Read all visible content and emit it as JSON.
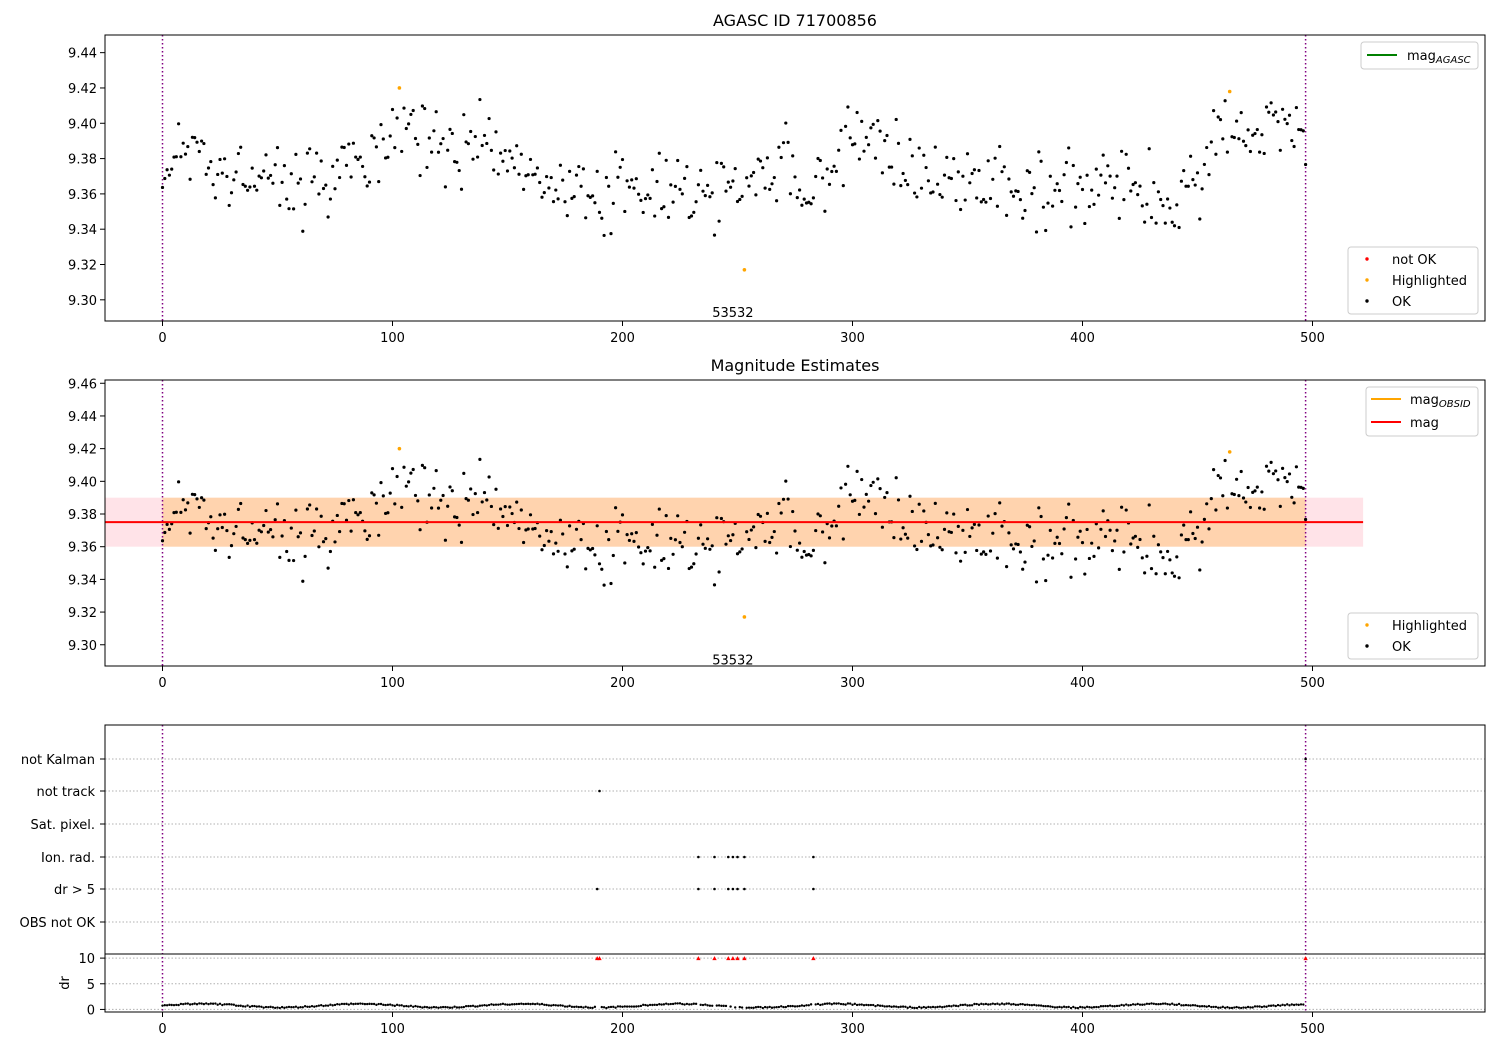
{
  "chart_data": [
    {
      "type": "scatter",
      "title": "AGASC ID 71700856",
      "xlim": [
        -25,
        575
      ],
      "ylim": [
        9.288,
        9.45
      ],
      "xticks": [
        0,
        100,
        200,
        300,
        400,
        500
      ],
      "yticks": [
        9.3,
        9.32,
        9.34,
        9.36,
        9.38,
        9.4,
        9.42,
        9.44
      ],
      "xtick_labels": [
        "0",
        "100",
        "200",
        "300",
        "400",
        "500"
      ],
      "ytick_labels": [
        "9.30",
        "9.32",
        "9.34",
        "9.36",
        "9.38",
        "9.40",
        "9.42",
        "9.44"
      ],
      "vlines": [
        0,
        497
      ],
      "annotation": {
        "text": "53532",
        "x": 248,
        "y": 9.293
      },
      "line_legend": [
        {
          "name": "mag",
          "sub": "AGASC",
          "color": "#008000"
        }
      ],
      "scatter_legend": [
        {
          "name": "not OK",
          "color": "#ff0000"
        },
        {
          "name": "Highlighted",
          "color": "#ffa500"
        },
        {
          "name": "OK",
          "color": "#000000"
        }
      ],
      "highlighted": [
        {
          "x": 103,
          "y": 9.42
        },
        {
          "x": 253,
          "y": 9.317
        },
        {
          "x": 464,
          "y": 9.418
        }
      ],
      "ok_trend": [
        [
          0,
          9.381
        ],
        [
          20,
          9.378
        ],
        [
          40,
          9.369
        ],
        [
          60,
          9.367
        ],
        [
          75,
          9.368
        ],
        [
          85,
          9.382
        ],
        [
          100,
          9.392
        ],
        [
          120,
          9.392
        ],
        [
          140,
          9.393
        ],
        [
          155,
          9.378
        ],
        [
          170,
          9.366
        ],
        [
          190,
          9.362
        ],
        [
          210,
          9.36
        ],
        [
          230,
          9.362
        ],
        [
          250,
          9.362
        ],
        [
          262,
          9.378
        ],
        [
          280,
          9.368
        ],
        [
          290,
          9.378
        ],
        [
          300,
          9.392
        ],
        [
          315,
          9.386
        ],
        [
          325,
          9.378
        ],
        [
          335,
          9.368
        ],
        [
          350,
          9.366
        ],
        [
          370,
          9.364
        ],
        [
          390,
          9.366
        ],
        [
          410,
          9.363
        ],
        [
          425,
          9.36
        ],
        [
          440,
          9.356
        ],
        [
          452,
          9.374
        ],
        [
          465,
          9.395
        ],
        [
          480,
          9.398
        ],
        [
          497,
          9.39
        ]
      ]
    },
    {
      "type": "scatter",
      "title": "Magnitude Estimates",
      "xlim": [
        -25,
        575
      ],
      "ylim": [
        9.287,
        9.462
      ],
      "xticks": [
        0,
        100,
        200,
        300,
        400,
        500
      ],
      "yticks": [
        9.3,
        9.32,
        9.34,
        9.36,
        9.38,
        9.4,
        9.42,
        9.44,
        9.46
      ],
      "xtick_labels": [
        "0",
        "100",
        "200",
        "300",
        "400",
        "500"
      ],
      "ytick_labels": [
        "9.30",
        "9.32",
        "9.34",
        "9.36",
        "9.38",
        "9.40",
        "9.42",
        "9.44",
        "9.46"
      ],
      "vlines": [
        0,
        497
      ],
      "annotation": {
        "text": "53532",
        "x": 248,
        "y": 9.291
      },
      "mag_line": {
        "y": 9.375,
        "x0": -25,
        "x1": 522,
        "color": "#ff0000"
      },
      "band_outer": {
        "y0": 9.36,
        "y1": 9.39,
        "x0": -25,
        "x1": 522,
        "color": "#ffc0cb"
      },
      "band_inner": {
        "y0": 9.36,
        "y1": 9.39,
        "x0": 0,
        "x1": 497,
        "color": "#ffa500"
      },
      "line_legend": [
        {
          "name": "mag",
          "sub": "OBSID",
          "color": "#ffa500"
        },
        {
          "name": "mag",
          "sub": "",
          "color": "#ff0000"
        }
      ],
      "scatter_legend": [
        {
          "name": "Highlighted",
          "color": "#ffa500"
        },
        {
          "name": "OK",
          "color": "#000000"
        }
      ],
      "highlighted": [
        {
          "x": 103,
          "y": 9.42
        },
        {
          "x": 253,
          "y": 9.317
        },
        {
          "x": 464,
          "y": 9.418
        }
      ]
    },
    {
      "type": "scatter",
      "xlim": [
        -25,
        575
      ],
      "xticks": [
        0,
        100,
        200,
        300,
        400,
        500
      ],
      "xtick_labels": [
        "0",
        "100",
        "200",
        "300",
        "400",
        "500"
      ],
      "vlines": [
        0,
        497
      ],
      "flag_rows": [
        "not Kalman",
        "not track",
        "Sat. pixel.",
        "Ion. rad.",
        "dr > 5",
        "OBS not OK"
      ],
      "flags": {
        "not Kalman": [
          497
        ],
        "not track": [
          190
        ],
        "Sat. pixel.": [],
        "Ion. rad.": [
          233,
          240,
          246,
          248,
          250,
          253,
          283
        ],
        "dr > 5": [
          189,
          233,
          240,
          246,
          248,
          250,
          253,
          283
        ],
        "OBS not OK": []
      },
      "dr": {
        "ylabel": "dr",
        "ylim": [
          -0.5,
          10.8
        ],
        "yticks": [
          0,
          5,
          10
        ],
        "ytick_labels": [
          "0",
          "5",
          "10"
        ],
        "outliers_x": [
          189,
          190,
          233,
          240,
          246,
          248,
          250,
          253,
          283,
          497
        ],
        "outlier_value": 10,
        "outlier_color": "#ff0000"
      }
    }
  ]
}
